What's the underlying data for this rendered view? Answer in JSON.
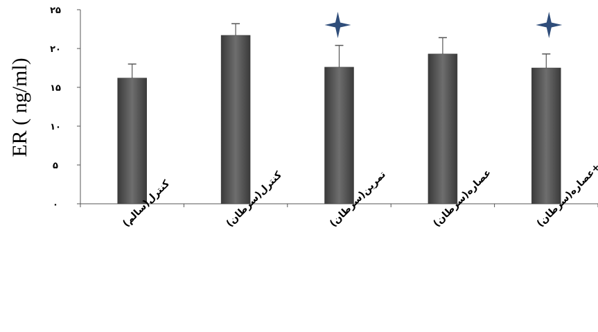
{
  "chart_data": {
    "type": "bar",
    "categories": [
      "کنترل(سالم)",
      "کنترل(سرطان)",
      "تمرین(سرطان)",
      "عصاره(سرطان)",
      "تمرین+عصاره(سرطان)"
    ],
    "values": [
      16.2,
      21.7,
      17.6,
      19.3,
      17.5
    ],
    "errors": [
      1.8,
      1.5,
      2.8,
      2.1,
      1.8
    ],
    "significant": [
      false,
      false,
      true,
      false,
      true
    ],
    "ylabel": "ER ( ng/ml)",
    "ylim": [
      0,
      25
    ],
    "yticks": [
      0,
      5,
      10,
      15,
      20,
      25
    ],
    "ytick_labels": [
      "۰",
      "۵",
      "۱۰",
      "۱۵",
      "۲۰",
      "۲۵"
    ],
    "grid": false,
    "colors": {
      "bar": "#4a4a4a",
      "bar_highlight": "#7a7a7a",
      "marker": "#2f4d7a"
    },
    "marker_icon": "four-point-star-icon"
  }
}
